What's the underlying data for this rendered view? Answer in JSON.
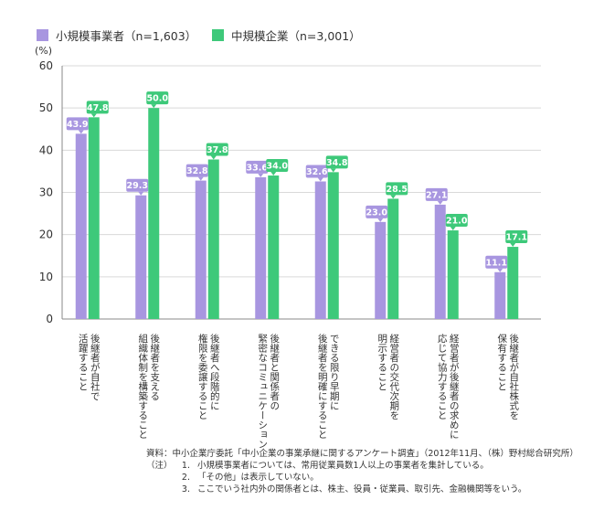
{
  "chart_data": {
    "type": "bar",
    "unit_label": "(%)",
    "categories": [
      "後継者が自社で活躍すること",
      "後継者を支える組織体制を構築すること",
      "後継者へ段階的に権限を委譲すること",
      "後継者と関係者の緊密なコミュニケーション",
      "できる限り早期に後継者を明確にすること",
      "経営者の交代次期を明示すること",
      "経営者が後継者の求めに応じて協力すること",
      "後継者が自社株式を保有すること"
    ],
    "category_lines": [
      [
        "後継者が自社で",
        "活躍すること"
      ],
      [
        "後継者を支える",
        "組織体制を構築すること"
      ],
      [
        "後継者へ段階的に",
        "権限を委譲すること"
      ],
      [
        "後継者と関係者の",
        "緊密なコミュニケーション"
      ],
      [
        "できる限り早期に",
        "後継者を明確にすること"
      ],
      [
        "経営者の交代次期を",
        "明示すること"
      ],
      [
        "経営者が後継者の求めに",
        "応じて協力すること"
      ],
      [
        "後継者が自社株式を",
        "保有すること"
      ]
    ],
    "series": [
      {
        "name": "小規模事業者（n=1,603）",
        "color": "#a896e0",
        "values": [
          43.9,
          29.3,
          32.8,
          33.6,
          32.6,
          23.0,
          27.1,
          11.1
        ],
        "labels": [
          "43.9",
          "29.3",
          "32.8",
          "33.6",
          "32.6",
          "23.0",
          "27.1",
          "11.1"
        ]
      },
      {
        "name": "中規模企業（n=3,001）",
        "color": "#3ec97a",
        "values": [
          47.8,
          50.0,
          37.8,
          34.0,
          34.8,
          28.5,
          21.0,
          17.1
        ],
        "labels": [
          "47.8",
          "50.0",
          "37.8",
          "34.0",
          "34.8",
          "28.5",
          "21.0",
          "17.1"
        ]
      }
    ],
    "ylim": [
      0,
      60
    ],
    "yticks": [
      "0",
      "10",
      "20",
      "30",
      "40",
      "50",
      "60"
    ],
    "grid": true
  },
  "notes": {
    "source": "資料：中小企業庁委託「中小企業の事業承継に関するアンケート調査」（2012年11月、（株）野村総合研究所）",
    "head": "（注）",
    "items": [
      {
        "num": "1.",
        "text": "小規模事業者については、常用従業員数1人以上の事業者を集計している。"
      },
      {
        "num": "2.",
        "text": "「その他」は表示していない。"
      },
      {
        "num": "3.",
        "text": "ここでいう社内外の関係者とは、株主、役員・従業員、取引先、金融機関等をいう。"
      }
    ]
  }
}
